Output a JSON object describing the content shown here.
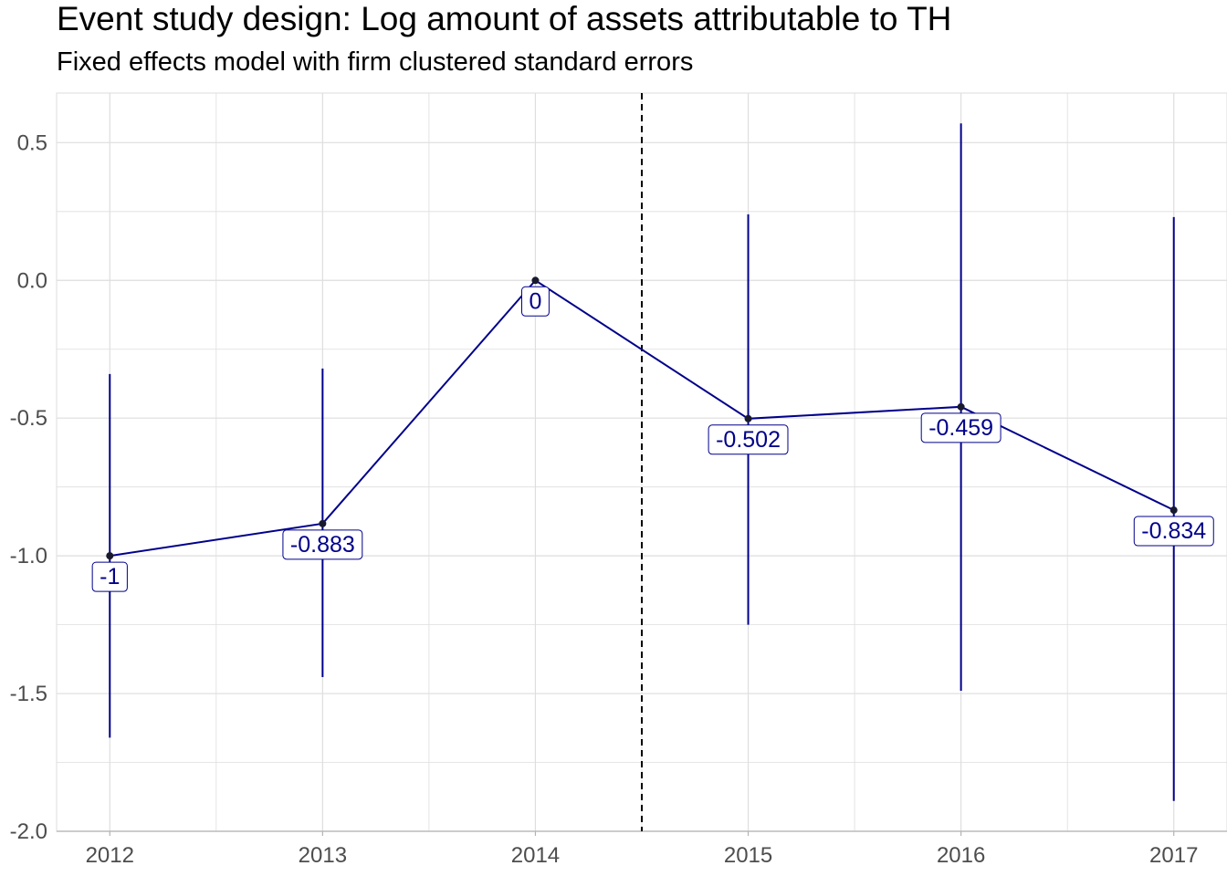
{
  "title": "Event study design: Log amount of assets attributable to TH",
  "subtitle": "Fixed effects model with firm clustered standard errors",
  "chart_data": {
    "type": "line",
    "title": "Event study design: Log amount of assets attributable to TH",
    "subtitle": "Fixed effects model with firm clustered standard errors",
    "xlabel": "",
    "ylabel": "",
    "x": [
      2012,
      2013,
      2014,
      2015,
      2016,
      2017
    ],
    "xlim": [
      2011.75,
      2017.25
    ],
    "ylim": [
      -2.0,
      0.68
    ],
    "xticks": [
      "2012",
      "2013",
      "2014",
      "2015",
      "2016",
      "2017"
    ],
    "yticks": [
      "0.5",
      "0.0",
      "-0.5",
      "-1.0",
      "-1.5",
      "-2.0"
    ],
    "series": [
      {
        "values": [
          -1,
          -0.883,
          0,
          -0.502,
          -0.459,
          -0.834
        ],
        "labels": [
          "-1",
          "-0.883",
          "0",
          "-0.502",
          "-0.459",
          "-0.834"
        ],
        "ci_lower": [
          -1.66,
          -1.44,
          0,
          -1.25,
          -1.49,
          -1.89
        ],
        "ci_upper": [
          -0.34,
          -0.32,
          0,
          0.24,
          0.57,
          0.23
        ]
      }
    ],
    "vline_x": 2014.5,
    "vline_style": "dashed",
    "grid": true,
    "legend": "none",
    "colors": {
      "series": "#00008b",
      "grid": "#dedede",
      "vline": "#000000",
      "axis_text": "#4d4d4d"
    }
  }
}
